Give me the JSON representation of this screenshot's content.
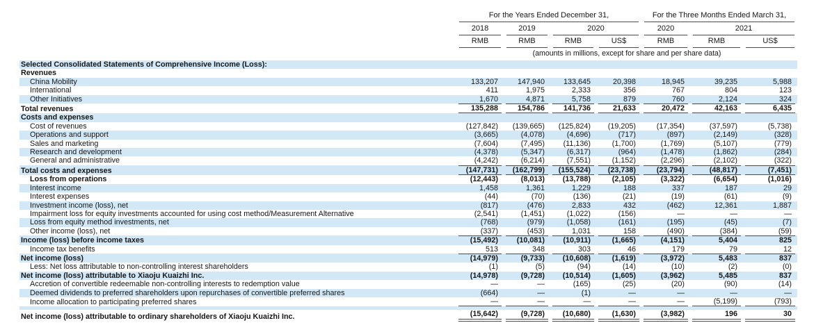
{
  "table": {
    "col_groups": [
      {
        "label": "For the Years Ended December 31,",
        "span": 4
      },
      {
        "label": "For the Three Months Ended March 31,",
        "span": 3
      }
    ],
    "year_headers": [
      {
        "label": "2018",
        "span": 1
      },
      {
        "label": "2019",
        "span": 1
      },
      {
        "label": "2020",
        "span": 2
      },
      {
        "label": "2020",
        "span": 1
      },
      {
        "label": "2021",
        "span": 2
      }
    ],
    "currency_headers": [
      "RMB",
      "RMB",
      "RMB",
      "US$",
      "RMB",
      "RMB",
      "US$"
    ],
    "units_note": "(amounts in millions, except for share and per share data)",
    "rows": [
      {
        "label": "Selected Consolidated Statements of Comprehensive Income (Loss):",
        "bold": true,
        "indent": 0,
        "stripe": true,
        "border": "none",
        "values": [
          "",
          "",
          "",
          "",
          "",
          "",
          ""
        ]
      },
      {
        "label": "Revenues",
        "bold": true,
        "indent": 0,
        "stripe": false,
        "border": "none",
        "values": [
          "",
          "",
          "",
          "",
          "",
          "",
          ""
        ]
      },
      {
        "label": "China Mobility",
        "bold": false,
        "indent": 1,
        "stripe": true,
        "border": "none",
        "values": [
          "133,207",
          "147,940",
          "133,645",
          "20,398",
          "18,945",
          "39,235",
          "5,988"
        ]
      },
      {
        "label": "International",
        "bold": false,
        "indent": 1,
        "stripe": false,
        "border": "none",
        "values": [
          "411",
          "1,975",
          "2,333",
          "356",
          "767",
          "804",
          "123"
        ]
      },
      {
        "label": "Other Initiatives",
        "bold": false,
        "indent": 1,
        "stripe": true,
        "border": "none",
        "values": [
          "1,670",
          "4,871",
          "5,758",
          "879",
          "760",
          "2,124",
          "324"
        ]
      },
      {
        "label": "Total revenues",
        "bold": true,
        "indent": 0,
        "stripe": false,
        "border": "top-bottom",
        "values": [
          "135,288",
          "154,786",
          "141,736",
          "21,633",
          "20,472",
          "42,163",
          "6,435"
        ]
      },
      {
        "label": "Costs and expenses",
        "bold": true,
        "indent": 0,
        "stripe": true,
        "border": "none",
        "values": [
          "",
          "",
          "",
          "",
          "",
          "",
          ""
        ]
      },
      {
        "label": "Cost of revenues",
        "bold": false,
        "indent": 1,
        "stripe": false,
        "border": "none",
        "values": [
          "(127,842)",
          "(139,665)",
          "(125,824)",
          "(19,205)",
          "(17,354)",
          "(37,597)",
          "(5,738)"
        ]
      },
      {
        "label": "Operations and support",
        "bold": false,
        "indent": 1,
        "stripe": true,
        "border": "none",
        "values": [
          "(3,665)",
          "(4,078)",
          "(4,696)",
          "(717)",
          "(897)",
          "(2,149)",
          "(328)"
        ]
      },
      {
        "label": "Sales and marketing",
        "bold": false,
        "indent": 1,
        "stripe": false,
        "border": "none",
        "values": [
          "(7,604)",
          "(7,495)",
          "(11,136)",
          "(1,700)",
          "(1,769)",
          "(5,107)",
          "(779)"
        ]
      },
      {
        "label": "Research and development",
        "bold": false,
        "indent": 1,
        "stripe": true,
        "border": "none",
        "values": [
          "(4,378)",
          "(5,347)",
          "(6,317)",
          "(964)",
          "(1,478)",
          "(1,862)",
          "(284)"
        ]
      },
      {
        "label": "General and administrative",
        "bold": false,
        "indent": 1,
        "stripe": false,
        "border": "none",
        "values": [
          "(4,242)",
          "(6,214)",
          "(7,551)",
          "(1,152)",
          "(2,296)",
          "(2,102)",
          "(322)"
        ]
      },
      {
        "label": "Total costs and expenses",
        "bold": true,
        "indent": 0,
        "stripe": true,
        "border": "top-bottom",
        "values": [
          "(147,731)",
          "(162,799)",
          "(155,524)",
          "(23,738)",
          "(23,794)",
          "(48,817)",
          "(7,451)"
        ]
      },
      {
        "label": "Loss from operations",
        "bold": true,
        "indent": 1,
        "stripe": false,
        "border": "none",
        "values": [
          "(12,443)",
          "(8,013)",
          "(13,788)",
          "(2,105)",
          "(3,322)",
          "(6,654)",
          "(1,016)"
        ]
      },
      {
        "label": "Interest income",
        "bold": false,
        "indent": 1,
        "stripe": true,
        "border": "none",
        "values": [
          "1,458",
          "1,361",
          "1,229",
          "188",
          "337",
          "187",
          "29"
        ]
      },
      {
        "label": "Interest expenses",
        "bold": false,
        "indent": 1,
        "stripe": false,
        "border": "none",
        "values": [
          "(44)",
          "(70)",
          "(136)",
          "(21)",
          "(19)",
          "(61)",
          "(9)"
        ]
      },
      {
        "label": "Investment income (loss), net",
        "bold": false,
        "indent": 1,
        "stripe": true,
        "border": "none",
        "values": [
          "(817)",
          "(476)",
          "2,833",
          "432",
          "(462)",
          "12,361",
          "1,887"
        ]
      },
      {
        "label": "Impairment loss for equity investments accounted for using cost method/Measurement Alternative",
        "bold": false,
        "indent": 1,
        "stripe": false,
        "border": "none",
        "values": [
          "(2,541)",
          "(1,451)",
          "(1,022)",
          "(156)",
          "—",
          "—",
          "—"
        ]
      },
      {
        "label": "Loss from equity method investments, net",
        "bold": false,
        "indent": 1,
        "stripe": true,
        "border": "none",
        "values": [
          "(768)",
          "(979)",
          "(1,058)",
          "(161)",
          "(195)",
          "(45)",
          "(7)"
        ]
      },
      {
        "label": "Other income (loss), net",
        "bold": false,
        "indent": 1,
        "stripe": false,
        "border": "none",
        "values": [
          "(337)",
          "(453)",
          "1,031",
          "158",
          "(490)",
          "(384)",
          "(59)"
        ]
      },
      {
        "label": "Income (loss) before income taxes",
        "bold": true,
        "indent": 0,
        "stripe": true,
        "border": "top",
        "values": [
          "(15,492)",
          "(10,081)",
          "(10,911)",
          "(1,665)",
          "(4,151)",
          "5,404",
          "825"
        ]
      },
      {
        "label": "Income tax benefits",
        "bold": false,
        "indent": 1,
        "stripe": false,
        "border": "none",
        "values": [
          "513",
          "348",
          "303",
          "46",
          "179",
          "79",
          "12"
        ]
      },
      {
        "label": "Net income (loss)",
        "bold": true,
        "indent": 0,
        "stripe": true,
        "border": "top",
        "values": [
          "(14,979)",
          "(9,733)",
          "(10,608)",
          "(1,619)",
          "(3,972)",
          "5,483",
          "837"
        ]
      },
      {
        "label": "Less: Net loss attributable to non-controlling interest shareholders",
        "bold": false,
        "indent": 1,
        "stripe": false,
        "border": "none",
        "values": [
          "(1)",
          "(5)",
          "(94)",
          "(14)",
          "(10)",
          "(2)",
          "(0)"
        ]
      },
      {
        "label": "Net income (loss) attributable to Xiaoju Kuaizhi Inc.",
        "bold": true,
        "indent": 0,
        "stripe": true,
        "border": "none",
        "values": [
          "(14,978)",
          "(9,728)",
          "(10,514)",
          "(1,605)",
          "(3,962)",
          "5,485",
          "837"
        ]
      },
      {
        "label": "Accretion of convertible redeemable non-controlling interests to redemption value",
        "bold": false,
        "indent": 1,
        "stripe": false,
        "border": "none",
        "values": [
          "—",
          "—",
          "(165)",
          "(25)",
          "(20)",
          "(90)",
          "(14)"
        ]
      },
      {
        "label": "Deemed dividends to preferred shareholders upon repurchases of convertible preferred shares",
        "bold": false,
        "indent": 1,
        "stripe": true,
        "border": "none",
        "values": [
          "(664)",
          "—",
          "(1)",
          "—",
          "—",
          "—",
          "—"
        ]
      },
      {
        "label": "Income allocation to participating preferred shares",
        "bold": false,
        "indent": 1,
        "stripe": false,
        "border": "bottom",
        "values": [
          "—",
          "—",
          "—",
          "—",
          "—",
          "(5,199)",
          "(793)"
        ]
      },
      {
        "spacer": true,
        "stripe": true
      },
      {
        "label": "Net income (loss) attributable to ordinary shareholders of Xiaoju Kuaizhi Inc.",
        "bold": true,
        "indent": 0,
        "stripe": false,
        "border": "double",
        "values": [
          "(15,642)",
          "(9,728)",
          "(10,680)",
          "(1,630)",
          "(3,982)",
          "196",
          "30"
        ]
      }
    ]
  },
  "colors": {
    "stripe": "#d2e8f6",
    "line": "#4a4a4a",
    "text": "#161616"
  }
}
